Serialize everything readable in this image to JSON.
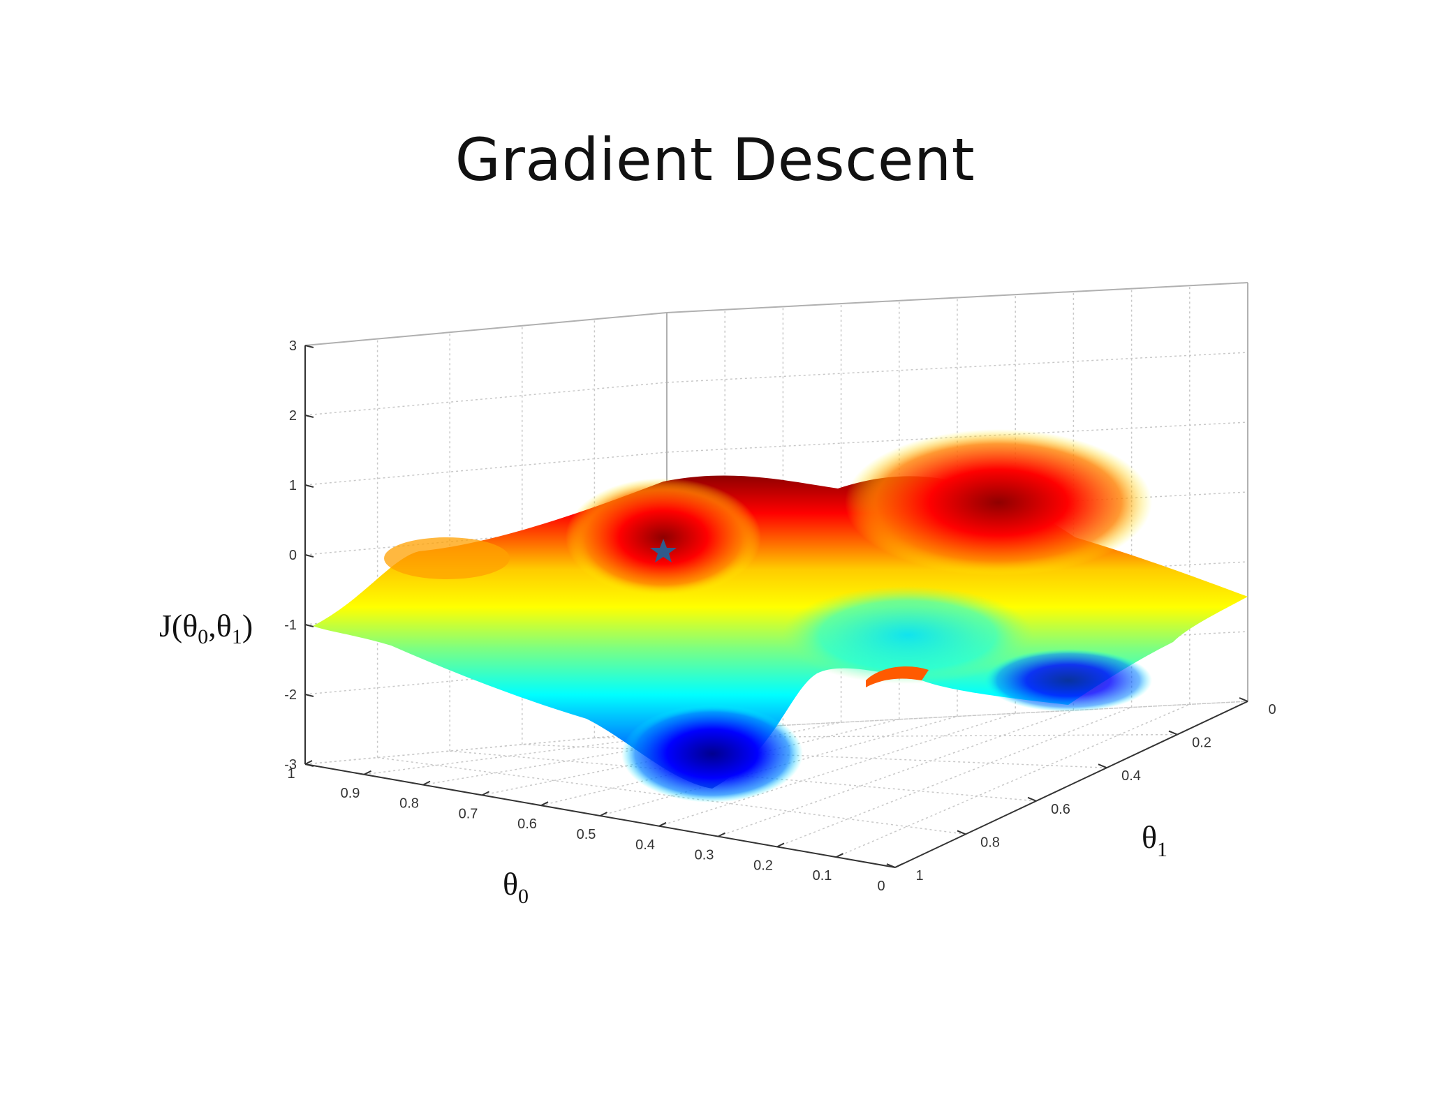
{
  "slide": {
    "title": "Gradient Descent"
  },
  "chart_data": {
    "type": "surface",
    "title": "Gradient Descent",
    "zlabel": {
      "main": "J(θ",
      "sub0": "0",
      "sep": ",θ",
      "sub1": "1",
      "end": ")"
    },
    "xlabel": {
      "main": "θ",
      "sub": "0"
    },
    "ylabel": {
      "main": "θ",
      "sub": "1"
    },
    "x_axis": {
      "name": "theta0",
      "range": [
        0,
        1
      ],
      "ticks": [
        "1",
        "0.9",
        "0.8",
        "0.7",
        "0.6",
        "0.5",
        "0.4",
        "0.3",
        "0.2",
        "0.1",
        "0"
      ]
    },
    "y_axis": {
      "name": "theta1",
      "range": [
        0,
        1
      ],
      "ticks": [
        "0",
        "0.2",
        "0.4",
        "0.6",
        "0.8",
        "1"
      ]
    },
    "z_axis": {
      "name": "J",
      "range": [
        -3,
        3
      ],
      "ticks": [
        "3",
        "2",
        "1",
        "0",
        "-1",
        "-2",
        "-3"
      ]
    },
    "grid": true,
    "colormap": "jet",
    "colors": {
      "low": "#00008f",
      "mid": "#7fff7f",
      "high": "#8f0000",
      "marker": "#2f5b8c"
    },
    "marker": {
      "shape": "star",
      "theta0": 0.55,
      "theta1": 0.1,
      "J": 2.1
    }
  }
}
